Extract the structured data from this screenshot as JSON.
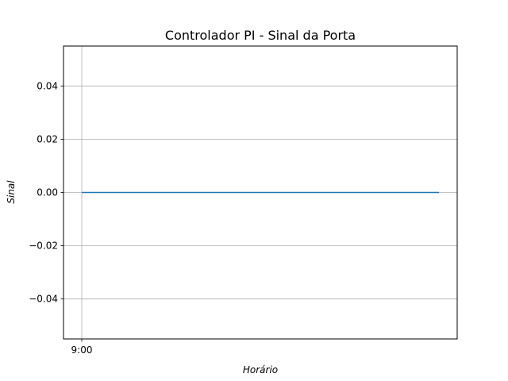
{
  "chart_data": {
    "type": "line",
    "title": "Controlador PI - Sinal da Porta",
    "xlabel": "Horário",
    "ylabel": "Sinal",
    "x_ticks": [
      "9:00"
    ],
    "ylim": [
      -0.055,
      0.055
    ],
    "y_ticks": [
      -0.04,
      -0.02,
      0.0,
      0.02,
      0.04
    ],
    "y_tick_labels": [
      "−0.04",
      "−0.02",
      "0.00",
      "0.02",
      "0.04"
    ],
    "grid": true,
    "series": [
      {
        "color": "#1f77b4",
        "y": [
          0.0,
          0.0
        ]
      }
    ]
  }
}
